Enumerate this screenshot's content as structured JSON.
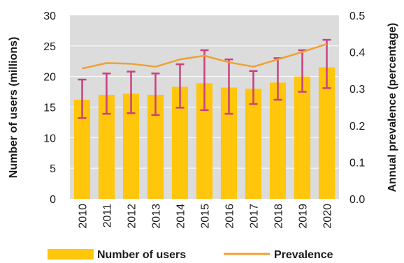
{
  "colors": {
    "plot_bg": "#dcdcdc",
    "bar": "#ffc60b",
    "line": "#f0a032",
    "error_bar": "#c9417f",
    "grid": "#ffffff"
  },
  "chart_data": {
    "type": "bar",
    "categories": [
      "2010",
      "2011",
      "2012",
      "2013",
      "2014",
      "2015",
      "2016",
      "2017",
      "2018",
      "2019",
      "2020"
    ],
    "series": [
      {
        "name": "Number of users",
        "type": "bar",
        "axis": "left",
        "values": [
          16.2,
          17.0,
          17.2,
          17.0,
          18.3,
          18.9,
          18.2,
          18.0,
          19.0,
          20.0,
          21.5
        ],
        "error_low": [
          13.2,
          13.9,
          14.0,
          13.7,
          14.9,
          14.5,
          13.9,
          15.5,
          16.2,
          17.5,
          18.1
        ],
        "error_high": [
          19.5,
          20.5,
          20.8,
          20.5,
          22.0,
          24.3,
          22.8,
          20.9,
          23.0,
          24.3,
          26.0
        ]
      },
      {
        "name": "Prevalence",
        "type": "line",
        "axis": "right",
        "values": [
          0.355,
          0.37,
          0.368,
          0.36,
          0.38,
          0.39,
          0.372,
          0.36,
          0.38,
          0.4,
          0.422
        ]
      }
    ],
    "ylabel": "Number of users (millions)",
    "y2label": "Annual prevalence (percentage)",
    "ylim": [
      0,
      30
    ],
    "y2lim": [
      0,
      0.5
    ],
    "yticks": [
      "0",
      "5",
      "10",
      "15",
      "20",
      "25",
      "30"
    ],
    "y2ticks": [
      "0.0",
      "0.1",
      "0.2",
      "0.3",
      "0.4",
      "0.5"
    ],
    "grid": true,
    "legend_position": "bottom",
    "legend": [
      "Number of users",
      "Prevalence"
    ]
  }
}
